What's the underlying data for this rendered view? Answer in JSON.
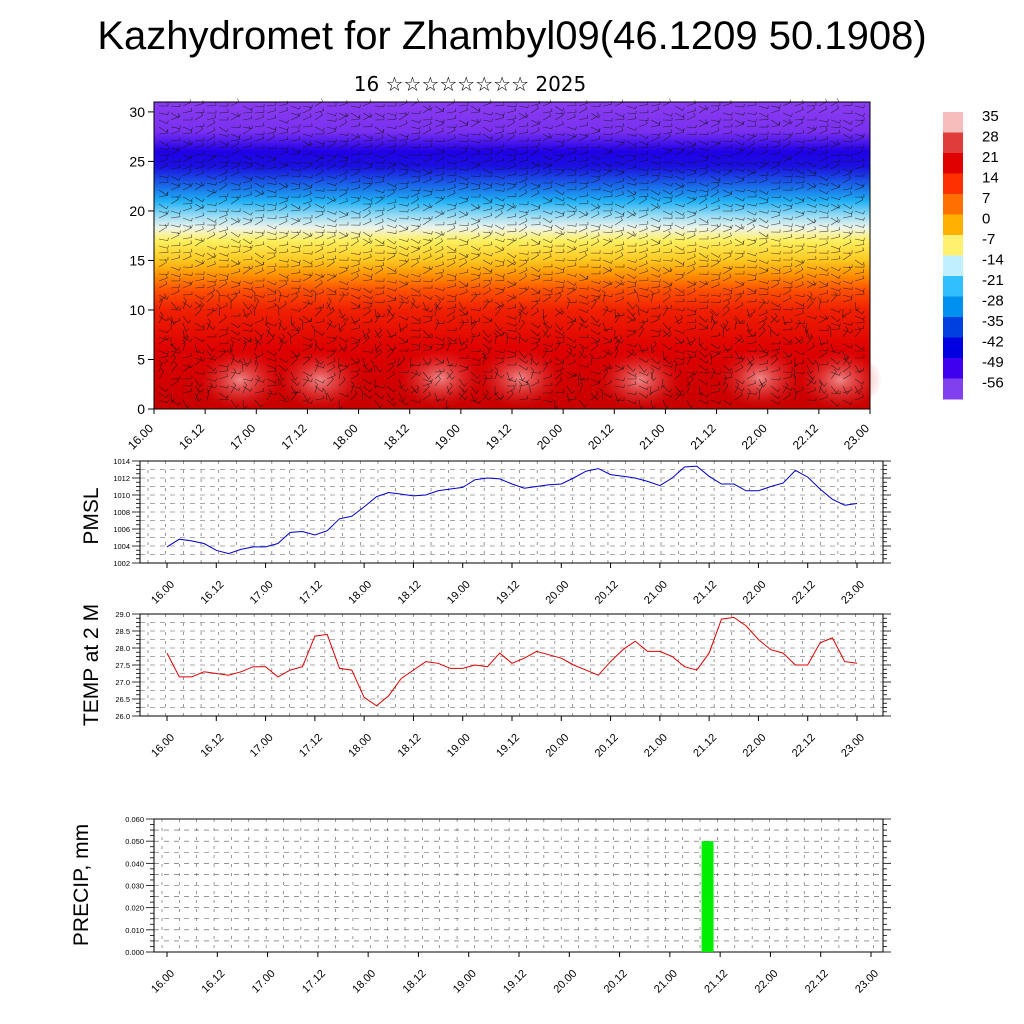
{
  "title": "Kazhydromet for Zhambyl09(46.1209 50.1908)",
  "subtitle": "16 ☆☆☆☆☆☆☆☆ 2025",
  "time_ticks": [
    "16.00",
    "16.12",
    "17.00",
    "17.12",
    "18.00",
    "18.12",
    "19.00",
    "19.12",
    "20.00",
    "20.12",
    "21.00",
    "21.12",
    "22.00",
    "22.12",
    "23.00"
  ],
  "chart_data": [
    {
      "id": "cross-section",
      "type": "heatmap",
      "title": "",
      "xlabel": "",
      "ylabel": "",
      "ylim": [
        0,
        31
      ],
      "y_ticks": [
        0,
        5,
        10,
        15,
        20,
        25,
        30
      ],
      "colorbar": {
        "labels": [
          "35",
          "28",
          "21",
          "14",
          "7",
          "0",
          "-7",
          "-14",
          "-21",
          "-28",
          "-35",
          "-42",
          "-49",
          "-56"
        ],
        "colors": [
          "#f7bcbc",
          "#e13c3c",
          "#e00000",
          "#ff3000",
          "#ff7000",
          "#ffb000",
          "#fff070",
          "#c0f0ff",
          "#30c0ff",
          "#0090f0",
          "#0040e0",
          "#0000e0",
          "#4000f0",
          "#8040f0"
        ]
      },
      "wind_barbs": true
    },
    {
      "id": "pmsl",
      "type": "line",
      "ylabel": "PMSL",
      "ylim": [
        1002,
        1014
      ],
      "y_ticks": [
        "1002",
        "1004",
        "1006",
        "1008",
        "1010",
        "1012",
        "1014"
      ],
      "color": "#0000cc",
      "x": [
        0,
        3,
        6,
        9,
        12,
        15,
        18,
        21,
        24,
        27,
        30,
        33,
        36,
        39,
        42,
        45,
        48,
        51,
        54,
        57,
        60,
        63,
        66,
        69,
        72,
        75,
        78,
        81,
        84,
        87,
        90,
        93,
        96,
        99,
        102,
        105,
        108,
        111,
        114,
        117,
        120,
        123,
        126,
        129,
        132,
        135,
        138,
        141,
        144,
        147,
        150,
        153,
        156,
        159,
        162,
        165,
        168
      ],
      "values": [
        1003.9,
        1004.8,
        1004.6,
        1004.3,
        1003.5,
        1003.1,
        1003.6,
        1003.9,
        1003.9,
        1004.3,
        1005.6,
        1005.7,
        1005.3,
        1005.8,
        1007.2,
        1007.5,
        1008.6,
        1009.8,
        1010.3,
        1010.1,
        1009.9,
        1010.0,
        1010.5,
        1010.7,
        1010.9,
        1011.8,
        1012.0,
        1011.9,
        1011.3,
        1010.8,
        1011.0,
        1011.2,
        1011.3,
        1012.0,
        1012.8,
        1013.1,
        1012.4,
        1012.2,
        1012.0,
        1011.6,
        1011.1,
        1012.0,
        1013.3,
        1013.4,
        1012.2,
        1011.3,
        1011.3,
        1010.5,
        1010.5,
        1011.0,
        1011.4,
        1012.9,
        1012.1,
        1010.7,
        1009.5,
        1008.8,
        1009.0
      ]
    },
    {
      "id": "temp2m",
      "type": "line",
      "ylabel": "TEMP at 2 M",
      "ylim": [
        26.0,
        29.0
      ],
      "y_ticks": [
        "26.0",
        "26.5",
        "27.0",
        "27.5",
        "28.0",
        "28.5",
        "29.0"
      ],
      "color": "#dd0000",
      "x": [
        0,
        3,
        6,
        9,
        12,
        15,
        18,
        21,
        24,
        27,
        30,
        33,
        36,
        39,
        42,
        45,
        48,
        51,
        54,
        57,
        60,
        63,
        66,
        69,
        72,
        75,
        78,
        81,
        84,
        87,
        90,
        93,
        96,
        99,
        102,
        105,
        108,
        111,
        114,
        117,
        120,
        123,
        126,
        129,
        132,
        135,
        138,
        141,
        144,
        147,
        150,
        153,
        156,
        159,
        162,
        165,
        168
      ],
      "values": [
        27.85,
        27.15,
        27.15,
        27.3,
        27.25,
        27.2,
        27.3,
        27.45,
        27.45,
        27.15,
        27.35,
        27.45,
        28.35,
        28.4,
        27.4,
        27.35,
        26.55,
        26.3,
        26.6,
        27.1,
        27.35,
        27.6,
        27.55,
        27.4,
        27.4,
        27.5,
        27.45,
        27.85,
        27.55,
        27.7,
        27.9,
        27.8,
        27.7,
        27.5,
        27.35,
        27.2,
        27.6,
        27.95,
        28.2,
        27.9,
        27.9,
        27.75,
        27.45,
        27.35,
        27.85,
        28.85,
        28.9,
        28.65,
        28.25,
        27.95,
        27.85,
        27.5,
        27.5,
        28.15,
        28.3,
        27.6,
        27.55
      ]
    },
    {
      "id": "precip",
      "type": "bar",
      "ylabel": "PRECIP, mm",
      "ylim": [
        0.0,
        0.06
      ],
      "y_ticks": [
        "0.000",
        "0.010",
        "0.020",
        "0.030",
        "0.040",
        "0.050",
        "0.060"
      ],
      "color": "#00ee00",
      "bars": [
        {
          "x": 129,
          "value": 0.05
        }
      ]
    }
  ]
}
